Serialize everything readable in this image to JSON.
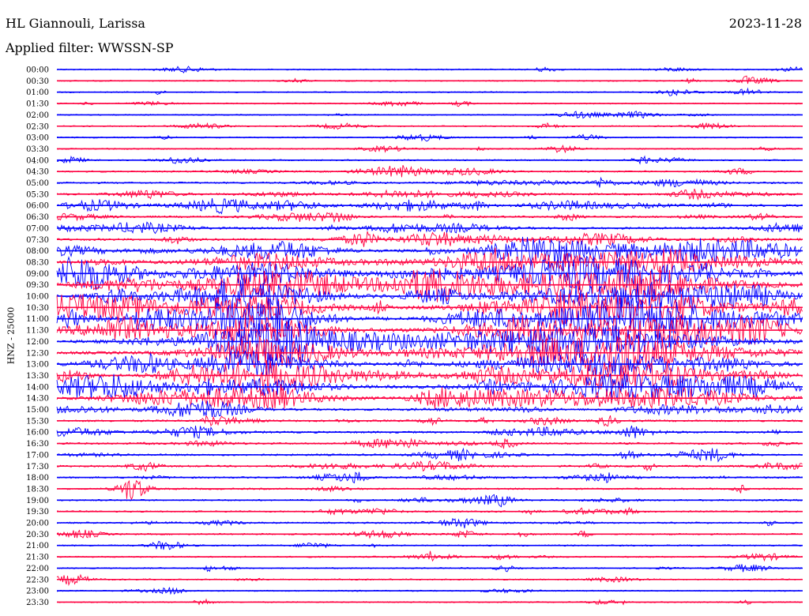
{
  "header": {
    "station": "HL Giannouli, Larissa",
    "date": "2023-11-28",
    "filter": "Applied filter: WWSSN-SP"
  },
  "chart_data": {
    "type": "line",
    "title": "HL Giannouli, Larissa",
    "ylabel": "HNZ - 25000",
    "rows": [
      "00:00",
      "00:30",
      "01:00",
      "01:30",
      "02:00",
      "02:30",
      "03:00",
      "03:30",
      "04:00",
      "04:30",
      "05:00",
      "05:30",
      "06:00",
      "06:30",
      "07:00",
      "07:30",
      "08:00",
      "08:30",
      "09:00",
      "09:30",
      "10:00",
      "10:30",
      "11:00",
      "11:30",
      "12:00",
      "12:30",
      "13:00",
      "13:30",
      "14:00",
      "14:30",
      "15:00",
      "15:30",
      "16:00",
      "16:30",
      "17:00",
      "17:30",
      "18:00",
      "18:30",
      "19:00",
      "19:30",
      "20:00",
      "20:30",
      "21:00",
      "21:30",
      "22:00",
      "22:30",
      "23:00",
      "23:30"
    ],
    "colors": [
      "#0000ff",
      "#ff0040"
    ],
    "activity": [
      0.15,
      0.12,
      0.14,
      0.12,
      0.12,
      0.13,
      0.16,
      0.18,
      0.2,
      0.3,
      0.4,
      0.5,
      0.6,
      0.5,
      0.55,
      0.6,
      0.7,
      0.85,
      1,
      1,
      1,
      1,
      1,
      1,
      1,
      1,
      0.9,
      0.9,
      0.8,
      0.8,
      0.6,
      0.5,
      0.5,
      0.45,
      0.45,
      0.4,
      0.4,
      0.35,
      0.32,
      0.3,
      0.3,
      0.28,
      0.25,
      0.22,
      0.2,
      0.18,
      0.16,
      0.15
    ],
    "grid": false,
    "legend": "none"
  }
}
